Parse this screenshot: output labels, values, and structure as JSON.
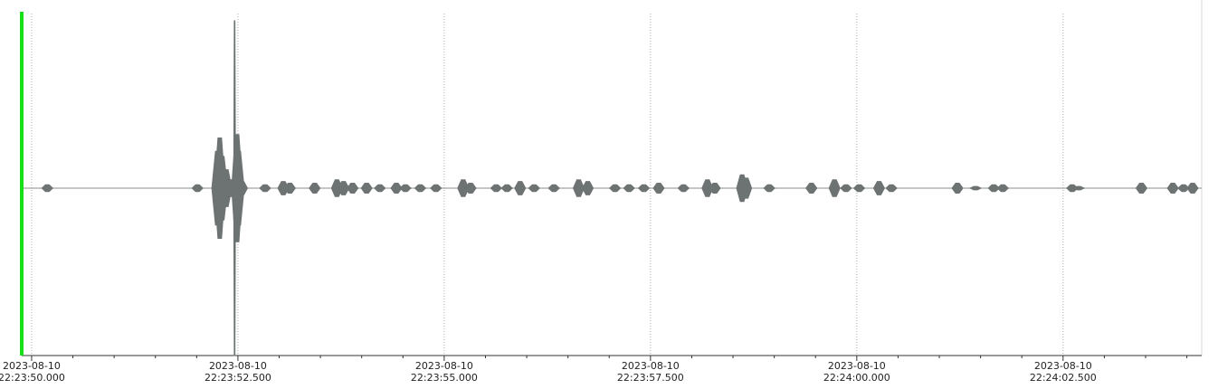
{
  "chart_data": {
    "type": "waveform",
    "color": "#6d7272",
    "xlim": [
      -0.12,
      14.18
    ],
    "ylim": [
      -1,
      1
    ],
    "xticks": [
      {
        "value": 0,
        "label": [
          "2023-08-10",
          "22:23:50.000"
        ]
      },
      {
        "value": 2.5,
        "label": [
          "2023-08-10",
          "22:23:52.500"
        ]
      },
      {
        "value": 5,
        "label": [
          "2023-08-10",
          "22:23:55.000"
        ]
      },
      {
        "value": 7.5,
        "label": [
          "2023-08-10",
          "22:23:57.500"
        ]
      },
      {
        "value": 10,
        "label": [
          "2023-08-10",
          "22:24:00.000"
        ]
      },
      {
        "value": 12.5,
        "label": [
          "2023-08-10",
          "22:24:02.500"
        ]
      }
    ],
    "xminor_ticks": [
      0.5,
      1,
      1.5,
      2,
      3,
      3.5,
      4,
      4.5,
      5.5,
      6,
      6.5,
      7,
      8,
      8.5,
      9,
      9.5,
      10.5,
      11,
      11.5,
      12,
      13,
      13.5,
      14
    ],
    "grid": true,
    "x": [
      0.19,
      2.01,
      2.25,
      2.28,
      2.31,
      2.36,
      2.41,
      2.46,
      2.49,
      2.51,
      2.55,
      2.83,
      3.05,
      3.13,
      3.43,
      3.7,
      3.78,
      3.89,
      4.06,
      4.22,
      4.42,
      4.53,
      4.71,
      4.9,
      5.23,
      5.32,
      5.63,
      5.76,
      5.92,
      6.09,
      6.33,
      6.63,
      6.74,
      7.07,
      7.24,
      7.42,
      7.6,
      7.9,
      8.19,
      8.28,
      8.61,
      8.66,
      8.94,
      9.45,
      9.73,
      9.87,
      10.03,
      10.27,
      10.42,
      11.22,
      11.44,
      11.66,
      11.77,
      12.61,
      12.69,
      13.45,
      13.83,
      13.96,
      14.07
    ],
    "values": [
      0.02,
      0.02,
      0.22,
      0.3,
      0.19,
      0.11,
      0.05,
      1.0,
      0.32,
      0.22,
      0.04,
      0.02,
      0.04,
      0.03,
      0.03,
      0.05,
      0.04,
      0.03,
      0.03,
      0.02,
      0.03,
      0.02,
      0.02,
      0.02,
      0.05,
      0.03,
      0.02,
      0.02,
      0.04,
      0.02,
      0.02,
      0.05,
      0.04,
      0.02,
      0.02,
      0.02,
      0.03,
      0.02,
      0.05,
      0.03,
      0.08,
      0.06,
      0.02,
      0.03,
      0.05,
      0.02,
      0.02,
      0.04,
      0.02,
      0.03,
      0.01,
      0.02,
      0.02,
      0.02,
      0.01,
      0.03,
      0.03,
      0.02,
      0.03
    ]
  }
}
